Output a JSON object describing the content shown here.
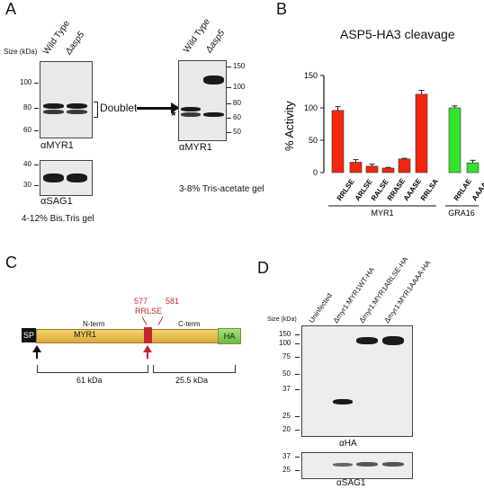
{
  "panels": {
    "a": "A",
    "b": "B",
    "c": "C",
    "d": "D"
  },
  "panelA": {
    "size_label": "Size (kDa)",
    "lane_wt": "Wild Type",
    "lane_asp5": "Δasp5",
    "left_ticks": [
      "100",
      "80",
      "60"
    ],
    "right_ticks": [
      "150",
      "100",
      "80",
      "60",
      "50"
    ],
    "sag_ticks": [
      "40",
      "30"
    ],
    "doublet": "Doublet",
    "asterisk": "*",
    "blot1": "αMYR1",
    "blot2": "αSAG1",
    "gel1": "4-12% Bis.Tris gel",
    "blot3": "αMYR1",
    "gel2": "3-8% Tris-acetate gel"
  },
  "panelC": {
    "sp": "SP",
    "nterm": "N-term",
    "myr1": "MYR1",
    "cterm": "C-term",
    "ha": "HA",
    "site_start": "577",
    "site_seq": "RRLSE",
    "site_end": "581",
    "frag1": "61 kDa",
    "frag2": "25.5 kDa"
  },
  "panelD": {
    "size_label": "Size (kDa)",
    "lanes": [
      "Uninfected",
      "Δmyr1:MYR1WT-HA",
      "Δmyr1:MYR1ARLSE-HA",
      "Δmyr1:MYR1AAAA-HA"
    ],
    "ticks": [
      "150",
      "100",
      "75",
      "50",
      "37",
      "25",
      "20"
    ],
    "sag_ticks": [
      "37",
      "25"
    ],
    "blot1": "αHA",
    "blot2": "αSAG1"
  },
  "chart_data": {
    "type": "bar",
    "title": "ASP5-HA3 cleavage",
    "ylabel": "% Activity",
    "ylim": [
      0,
      150
    ],
    "yticks": [
      "0",
      "50",
      "100",
      "150"
    ],
    "categories": [
      "RRLSE",
      "ARLSE",
      "RALSE",
      "RRASE",
      "AAASE",
      "RRLSA",
      "RRLAE",
      "AAAAE"
    ],
    "values": [
      96,
      16,
      10,
      7,
      21,
      121,
      100,
      15
    ],
    "errors": [
      6,
      4,
      3,
      1,
      1,
      6,
      3,
      4
    ],
    "groups": [
      {
        "name": "MYR1",
        "count": 6
      },
      {
        "name": "GRA16",
        "count": 2
      }
    ],
    "colors": {
      "myr1": "#f5260f",
      "gra16": "#33e22f",
      "mutated": "#e8261e"
    }
  }
}
